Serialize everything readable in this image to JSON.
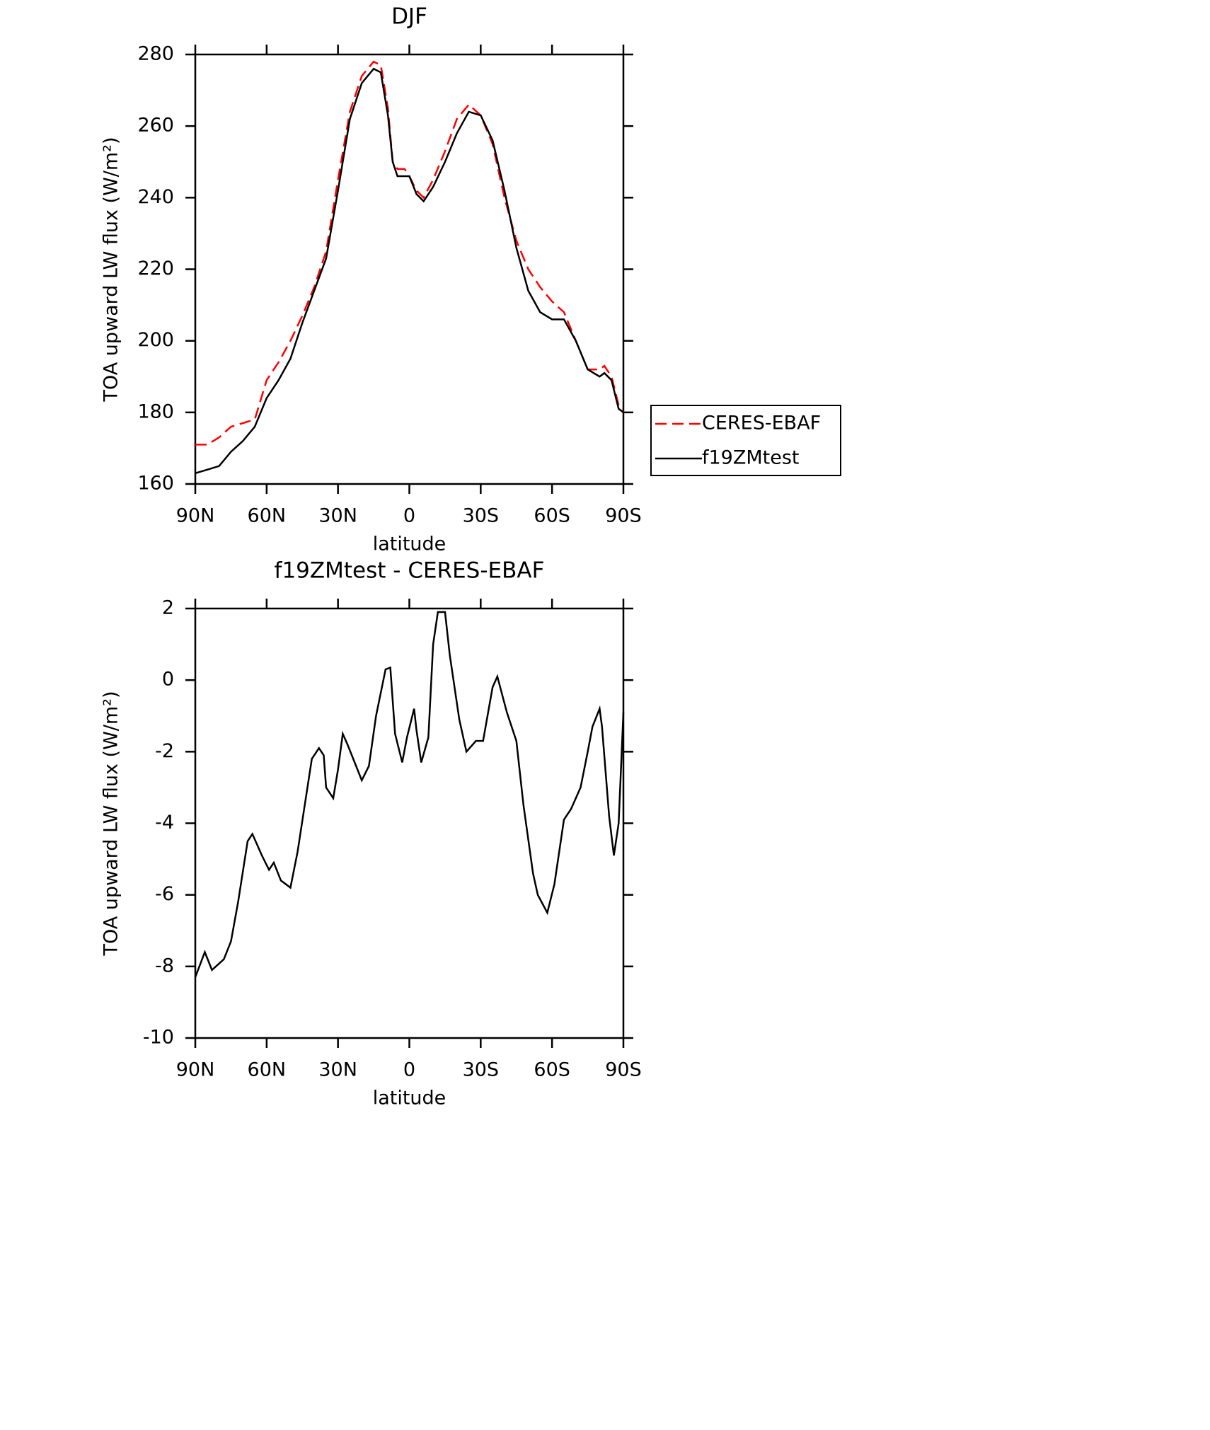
{
  "chart_data": [
    {
      "type": "line",
      "title": "DJF",
      "xlabel": "latitude",
      "ylabel": "TOA upward LW flux (W/m²)",
      "x": [
        90,
        85,
        80,
        75,
        70,
        65,
        60,
        55,
        50,
        45,
        40,
        35,
        30,
        25,
        20,
        15,
        12,
        9,
        7,
        5,
        2,
        0,
        -3,
        -6,
        -10,
        -15,
        -20,
        -25,
        -30,
        -35,
        -40,
        -45,
        -50,
        -55,
        -60,
        -65,
        -70,
        -75,
        -80,
        -82,
        -85,
        -88,
        -90
      ],
      "series": [
        {
          "name": "CERES-EBAF",
          "color": "#ff0000",
          "dashed": true,
          "values": [
            171,
            171,
            173,
            176,
            177,
            178,
            189,
            194,
            200,
            207,
            215,
            225,
            245,
            264,
            274,
            278,
            277,
            265,
            250,
            248,
            248,
            246,
            242,
            240,
            245,
            253,
            262,
            266,
            263,
            255,
            240,
            228,
            220,
            215,
            211,
            208,
            200,
            192,
            192,
            193,
            190,
            182,
            180
          ]
        },
        {
          "name": "f19ZMtest",
          "color": "#000000",
          "dashed": false,
          "values": [
            163,
            164,
            165,
            169,
            172,
            176,
            184,
            189,
            195,
            205,
            214,
            223,
            242,
            262,
            272,
            276,
            275,
            263,
            250,
            246,
            246,
            246,
            241,
            239,
            243,
            250,
            258,
            264,
            263,
            256,
            242,
            226,
            214,
            208,
            206,
            206,
            200,
            192,
            190,
            191,
            189,
            181,
            180
          ]
        }
      ],
      "xlim": [
        90,
        -90
      ],
      "xticks": [
        {
          "value": 90,
          "label": "90N"
        },
        {
          "value": 60,
          "label": "60N"
        },
        {
          "value": 30,
          "label": "30N"
        },
        0,
        {
          "value": -30,
          "label": "30S"
        },
        {
          "value": -60,
          "label": "60S"
        },
        {
          "value": -90,
          "label": "90S"
        }
      ],
      "ylim": [
        160,
        280
      ],
      "yticks": [
        160,
        180,
        200,
        220,
        240,
        260,
        280
      ],
      "legend": "right"
    },
    {
      "type": "line",
      "title": "f19ZMtest - CERES-EBAF",
      "xlabel": "latitude",
      "ylabel": "TOA upward LW flux (W/m²)",
      "x": [
        90,
        86,
        83,
        78,
        75,
        72,
        68,
        66,
        62,
        59,
        57,
        54,
        50,
        47,
        44,
        41,
        38,
        36,
        35,
        32,
        30,
        28,
        26,
        23,
        20,
        17,
        14,
        10,
        8,
        6,
        3,
        1,
        -2,
        -3,
        -5,
        -8,
        -10,
        -12,
        -15,
        -17,
        -21,
        -24,
        -28,
        -31,
        -35,
        -37,
        -41,
        -45,
        -48,
        -52,
        -54,
        -58,
        -61,
        -65,
        -68,
        -72,
        -75,
        -77,
        -80,
        -81,
        -84,
        -86,
        -88,
        -90
      ],
      "series": [
        {
          "name": "f19ZMtest - CERES-EBAF",
          "color": "#000000",
          "dashed": false,
          "values": [
            -8.3,
            -7.6,
            -8.1,
            -7.8,
            -7.3,
            -6.2,
            -4.5,
            -4.3,
            -4.9,
            -5.3,
            -5.1,
            -5.6,
            -5.8,
            -4.8,
            -3.5,
            -2.2,
            -1.9,
            -2.1,
            -3.0,
            -3.3,
            -2.5,
            -1.5,
            -1.8,
            -2.3,
            -2.8,
            -2.4,
            -1.0,
            0.3,
            0.35,
            -1.5,
            -2.3,
            -1.6,
            -0.8,
            -1.4,
            -2.3,
            -1.6,
            1.0,
            1.9,
            1.9,
            0.7,
            -1.1,
            -2.0,
            -1.7,
            -1.7,
            -0.2,
            0.1,
            -0.9,
            -1.7,
            -3.5,
            -5.4,
            -6.0,
            -6.5,
            -5.7,
            -3.9,
            -3.6,
            -3.0,
            -2.0,
            -1.3,
            -0.8,
            -1.3,
            -3.8,
            -4.9,
            -4.0,
            -0.9
          ]
        }
      ],
      "xlim": [
        90,
        -90
      ],
      "xticks": [
        {
          "value": 90,
          "label": "90N"
        },
        {
          "value": 60,
          "label": "60N"
        },
        {
          "value": 30,
          "label": "30N"
        },
        0,
        {
          "value": -30,
          "label": "30S"
        },
        {
          "value": -60,
          "label": "60S"
        },
        {
          "value": -90,
          "label": "90S"
        }
      ],
      "ylim": [
        -10,
        2
      ],
      "yticks": [
        -10,
        -8,
        -6,
        -4,
        -2,
        0,
        2
      ]
    }
  ]
}
